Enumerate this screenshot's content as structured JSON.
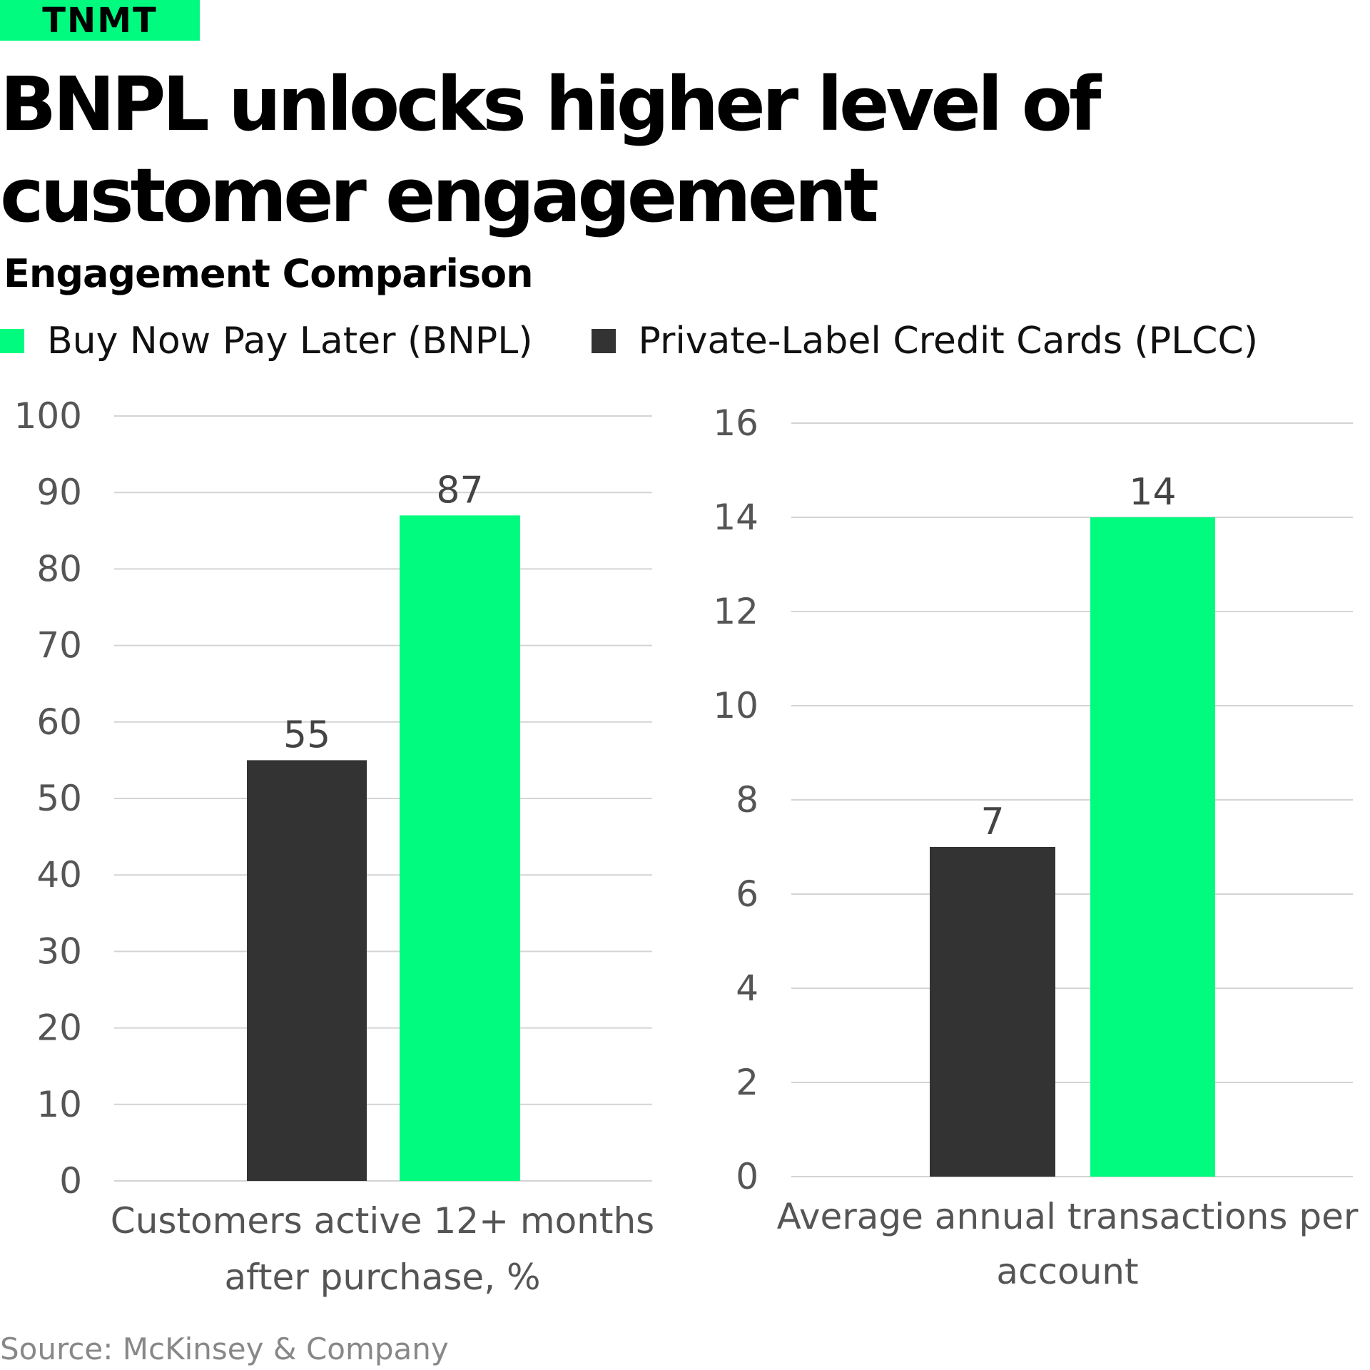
{
  "logo": "TNMT",
  "title": "BNPL unlocks higher level of customer engagement",
  "subtitle": "Engagement Comparison",
  "legend": [
    {
      "label": "Buy Now Pay Later (BNPL)",
      "color": "#00fb7f"
    },
    {
      "label": "Private-Label Credit Cards (PLCC)",
      "color": "#333333"
    }
  ],
  "source": "Source: McKinsey & Company",
  "chart_data": [
    {
      "type": "bar",
      "categories": [
        "Customers active 12+ months after purchase, %"
      ],
      "xlabel_lines": [
        "Customers active 12+ months",
        "after purchase, %"
      ],
      "series": [
        {
          "name": "Private-Label Credit Cards (PLCC)",
          "values": [
            55
          ],
          "color": "#333333"
        },
        {
          "name": "Buy Now Pay Later (BNPL)",
          "values": [
            87
          ],
          "color": "#00fb7f"
        }
      ],
      "ylim": [
        0,
        100
      ],
      "yticks": [
        0,
        10,
        20,
        30,
        40,
        50,
        60,
        70,
        80,
        90,
        100
      ],
      "grid": true,
      "legend": "top-left"
    },
    {
      "type": "bar",
      "categories": [
        "Average annual transactions per account"
      ],
      "xlabel_lines": [
        "Average annual transactions per",
        "account"
      ],
      "series": [
        {
          "name": "Private-Label Credit Cards (PLCC)",
          "values": [
            7
          ],
          "color": "#333333"
        },
        {
          "name": "Buy Now Pay Later (BNPL)",
          "values": [
            14
          ],
          "color": "#00fb7f"
        }
      ],
      "ylim": [
        0,
        16
      ],
      "yticks": [
        0,
        2,
        4,
        6,
        8,
        10,
        12,
        14,
        16
      ],
      "grid": true,
      "legend": "top-left"
    }
  ]
}
